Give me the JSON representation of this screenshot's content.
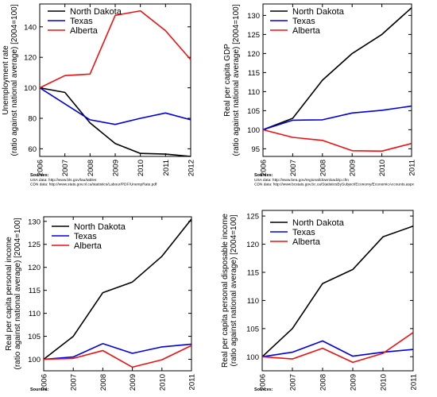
{
  "chart_data": [
    {
      "type": "line",
      "ylabel": [
        "Unemployment rate",
        "(ratio against national average) [2004=100]"
      ],
      "x": [
        "2006",
        "2007",
        "2008",
        "2009",
        "2010",
        "2011",
        "2012"
      ],
      "ylim": [
        55,
        155
      ],
      "yticks": [
        60,
        80,
        100,
        120,
        140
      ],
      "series": [
        {
          "name": "North Dakota",
          "color": "#000000",
          "values": [
            100,
            97,
            77,
            63.5,
            57,
            56.5,
            55
          ]
        },
        {
          "name": "Texas",
          "color": "#0000dd",
          "values": [
            100,
            89.5,
            79,
            76,
            80,
            83.5,
            79
          ]
        },
        {
          "name": "Alberta",
          "color": "#ee1111",
          "values": [
            100,
            108,
            109,
            147.5,
            150.5,
            137.5,
            118.5
          ]
        }
      ],
      "sources": {
        "heading": "Sources:",
        "lines": [
          "USA data: http://www.bls.gov/lau/tables",
          "CDN data: http://www.stats.gov.nl.ca/statistics/Labour/PDF/UnempRate.pdf"
        ]
      }
    },
    {
      "type": "line",
      "ylabel": [
        "Real per capita GDP",
        "(ratio against national average) [2004=100]"
      ],
      "x": [
        "2006",
        "2007",
        "2008",
        "2009",
        "2010",
        "2011"
      ],
      "ylim": [
        93,
        133
      ],
      "yticks": [
        95,
        100,
        105,
        110,
        115,
        120,
        125,
        130
      ],
      "series": [
        {
          "name": "North Dakota",
          "color": "#000000",
          "values": [
            100,
            103,
            113,
            120,
            125,
            132
          ]
        },
        {
          "name": "Texas",
          "color": "#0000dd",
          "values": [
            100,
            102.5,
            102.6,
            104.4,
            105.1,
            106.2
          ]
        },
        {
          "name": "Alberta",
          "color": "#ee1111",
          "values": [
            100,
            98,
            97.2,
            94.5,
            94.4,
            96.4
          ]
        }
      ],
      "sources": {
        "heading": "Sources:",
        "lines": [
          "USA data: http://www.bea.gov/regional/downloadzip.cfm",
          "CDN data: http://www.bcstats.gov.bc.ca/StatisticsBySubject/Economy/EconomicAccounts.aspx"
        ]
      }
    },
    {
      "type": "line",
      "ylabel": [
        "Real per capita personal income",
        "(ratio against national average) [2004=100]"
      ],
      "x": [
        "2006",
        "2007",
        "2008",
        "2009",
        "2010",
        "2011"
      ],
      "ylim": [
        97.5,
        131
      ],
      "yticks": [
        100,
        105,
        110,
        115,
        120,
        125,
        130
      ],
      "series": [
        {
          "name": "North Dakota",
          "color": "#000000",
          "values": [
            100,
            105,
            114.5,
            116.8,
            122.4,
            130.5
          ]
        },
        {
          "name": "Texas",
          "color": "#0000dd",
          "values": [
            100,
            100.5,
            103.4,
            101.3,
            102.7,
            103.3
          ]
        },
        {
          "name": "Alberta",
          "color": "#ee1111",
          "values": [
            100,
            100.2,
            101.9,
            98.3,
            99.9,
            103
          ]
        }
      ],
      "sources": {
        "heading": "Sources:",
        "lines": []
      }
    },
    {
      "type": "line",
      "ylabel": [
        "Real per capita personal disposable income",
        "(ratio against national average) [2004=100]"
      ],
      "x": [
        "2006",
        "2007",
        "2008",
        "2009",
        "2010",
        "2011"
      ],
      "ylim": [
        97.5,
        126
      ],
      "yticks": [
        100,
        105,
        110,
        115,
        120,
        125
      ],
      "series": [
        {
          "name": "North Dakota",
          "color": "#000000",
          "values": [
            100,
            105,
            113,
            115.5,
            121.3,
            123.2
          ]
        },
        {
          "name": "Texas",
          "color": "#0000dd",
          "values": [
            100,
            100.8,
            102.8,
            100.1,
            100.8,
            101.3
          ]
        },
        {
          "name": "Alberta",
          "color": "#ee1111",
          "values": [
            100,
            99.6,
            101.5,
            99,
            100.6,
            104.3
          ]
        }
      ],
      "sources": {
        "heading": "Sources:",
        "lines": []
      }
    }
  ]
}
